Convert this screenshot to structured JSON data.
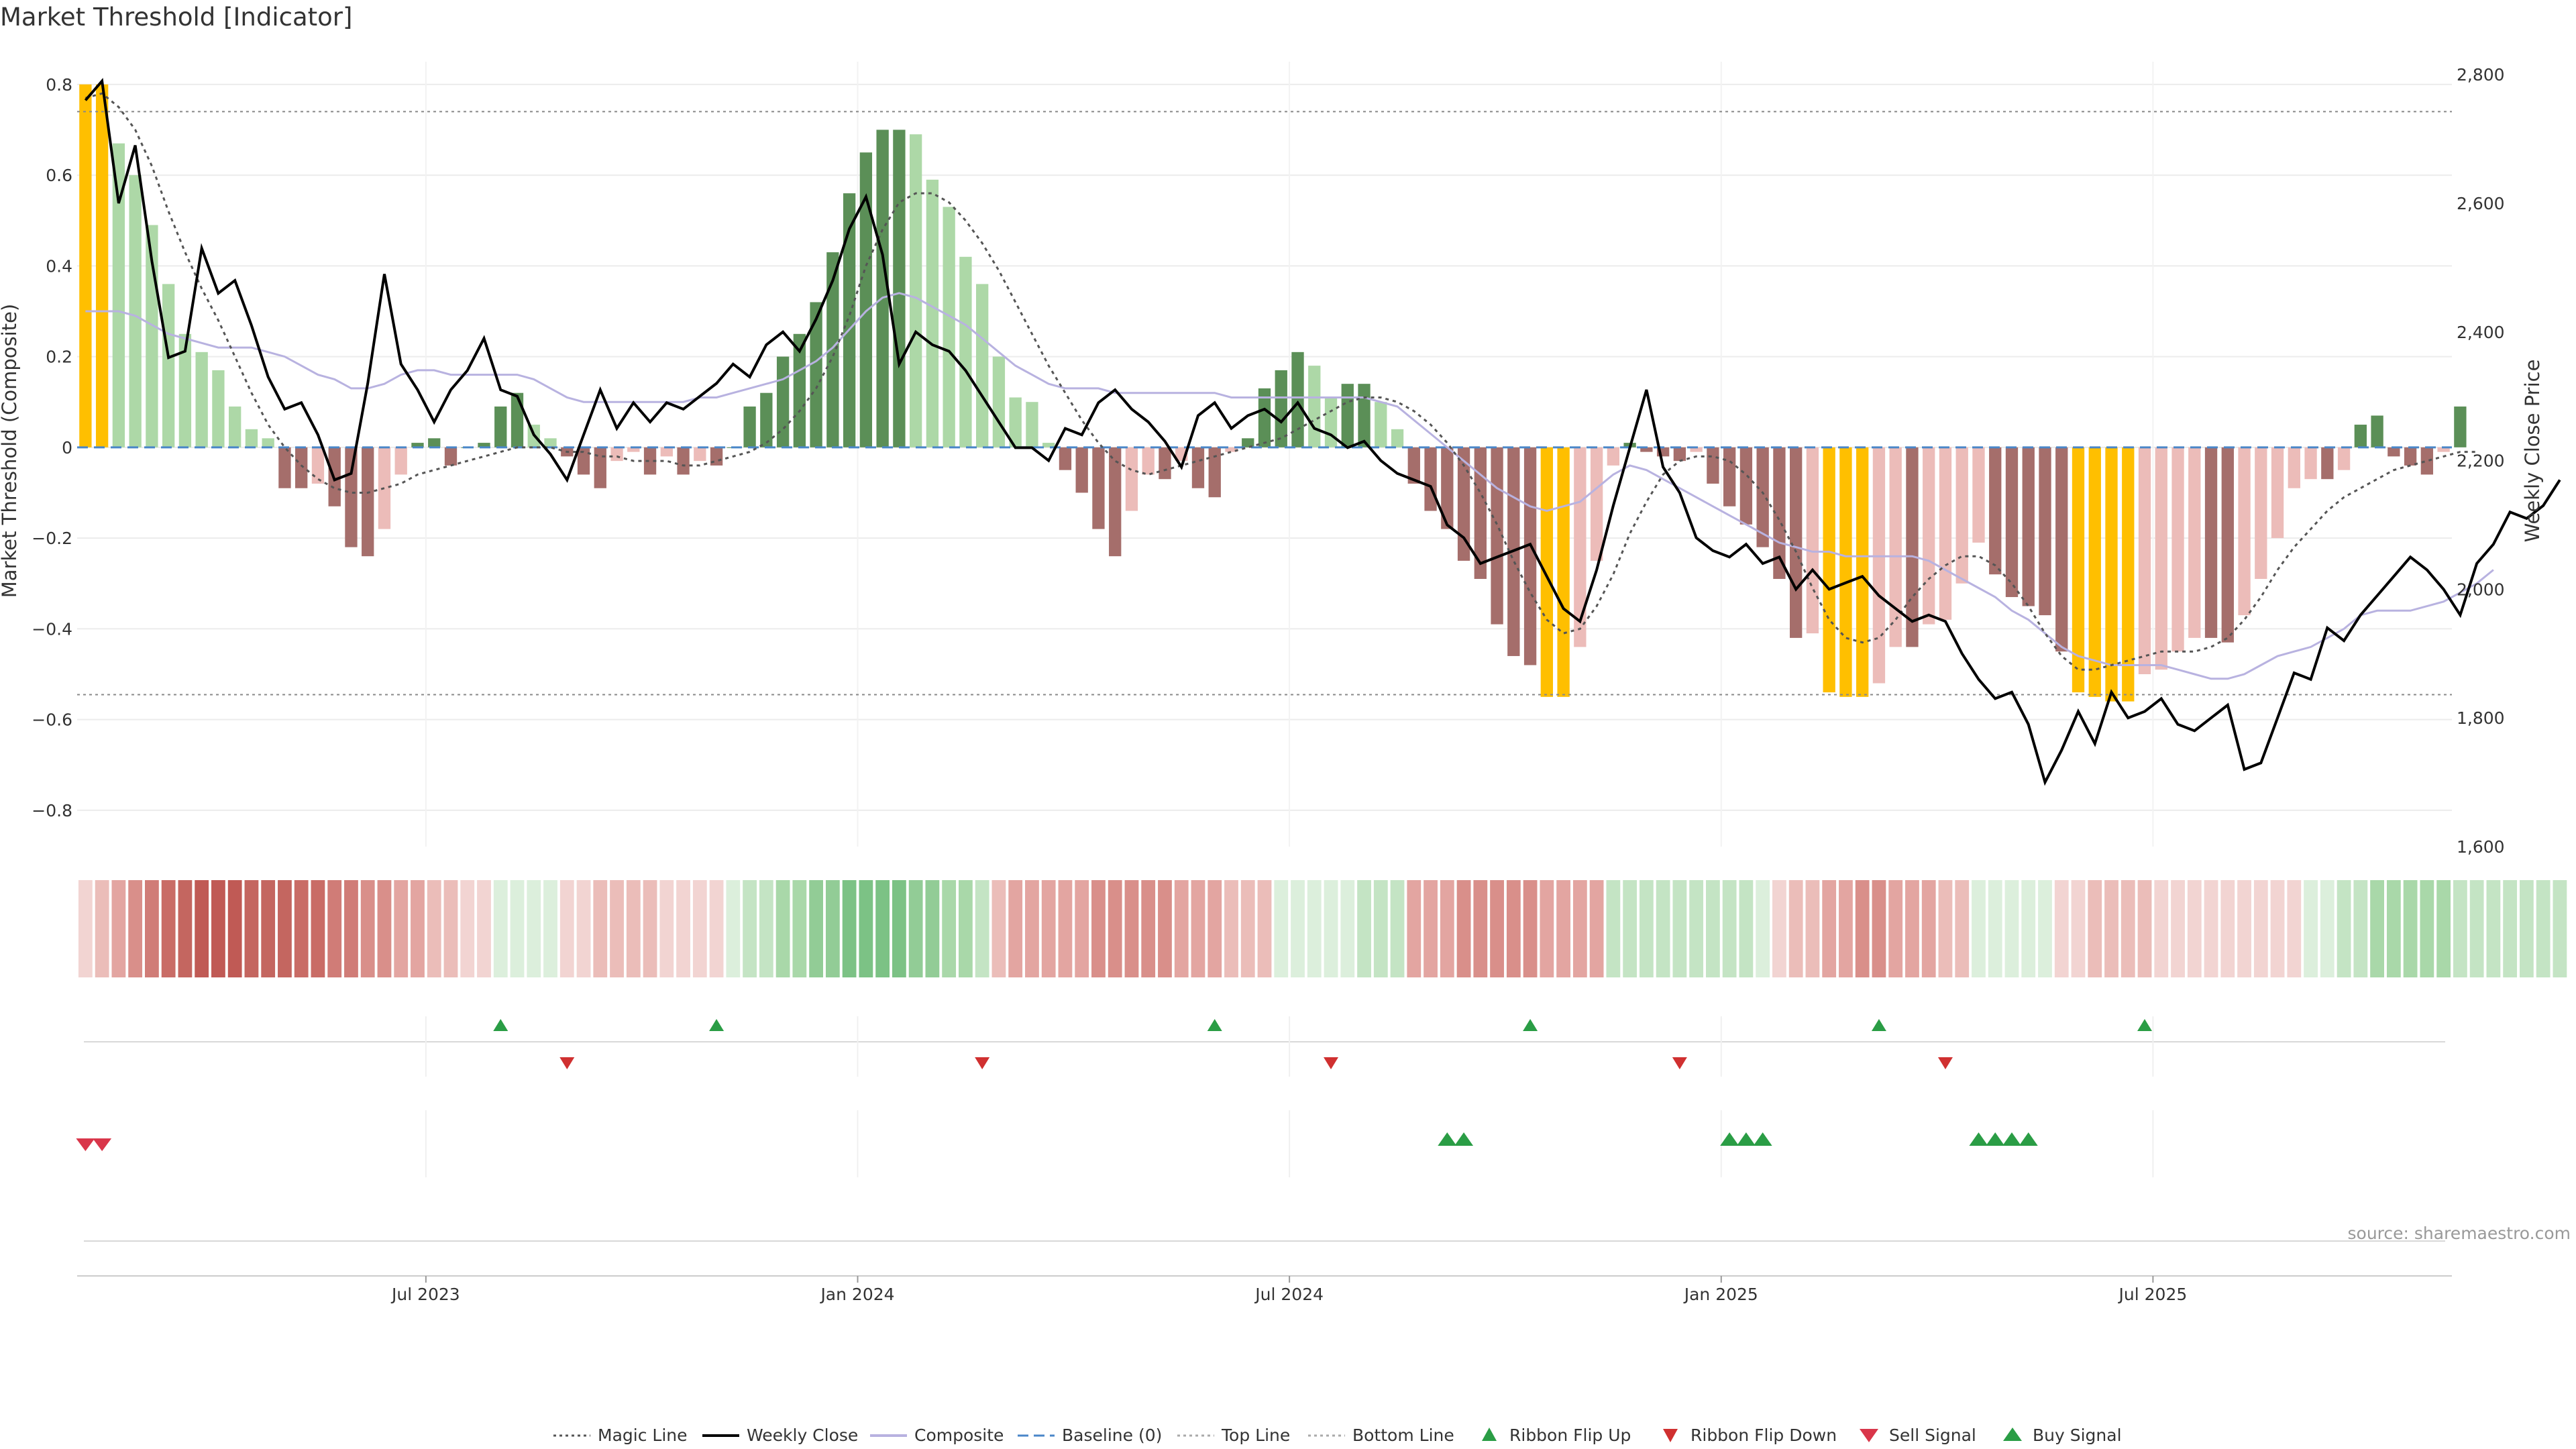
{
  "chart_data": {
    "type": "bar",
    "title": "Market Threshold [Indicator]",
    "ylabel_left": "Market Threshold (Composite)",
    "ylabel_right": "Weekly Close Price",
    "ylim_left": [
      -0.88,
      0.85
    ],
    "ylim_right": [
      1600,
      2820
    ],
    "yticks_left": [
      -0.8,
      -0.6,
      -0.4,
      -0.2,
      0,
      0.2,
      0.4,
      0.6,
      0.8
    ],
    "ytick_labels_left": [
      "−0.8",
      "−0.6",
      "−0.4",
      "−0.2",
      "0",
      "0.2",
      "0.4",
      "0.6",
      "0.8"
    ],
    "yticks_right": [
      1600,
      1800,
      2000,
      2200,
      2400,
      2600,
      2800
    ],
    "ytick_labels_right": [
      "1,600",
      "1,800",
      "2,000",
      "2,200",
      "2,400",
      "2,600",
      "2,800"
    ],
    "x_ticks": [
      {
        "week": 21,
        "label": "Jul 2023"
      },
      {
        "week": 47,
        "label": "Jan 2024"
      },
      {
        "week": 73,
        "label": "Jul 2024"
      },
      {
        "week": 99,
        "label": "Jan 2025"
      },
      {
        "week": 125,
        "label": "Jul 2025"
      }
    ],
    "weeks": 143,
    "top_line": 0.74,
    "bottom_line": -0.545,
    "baseline": 0,
    "composite_bars": [
      0.8,
      0.8,
      0.67,
      0.6,
      0.49,
      0.36,
      0.25,
      0.21,
      0.17,
      0.09,
      0.04,
      0.02,
      -0.09,
      -0.09,
      -0.08,
      -0.13,
      -0.22,
      -0.24,
      -0.18,
      -0.06,
      0.01,
      0.02,
      -0.04,
      0,
      0.01,
      0.09,
      0.12,
      0.05,
      0.02,
      -0.02,
      -0.06,
      -0.09,
      -0.03,
      -0.01,
      -0.06,
      -0.02,
      -0.06,
      -0.03,
      -0.04,
      0,
      0.09,
      0.12,
      0.2,
      0.25,
      0.32,
      0.43,
      0.56,
      0.65,
      0.7,
      0.7,
      0.69,
      0.59,
      0.53,
      0.42,
      0.36,
      0.2,
      0.11,
      0.1,
      0.01,
      -0.05,
      -0.1,
      -0.18,
      -0.24,
      -0.14,
      -0.06,
      -0.07,
      -0.03,
      -0.09,
      -0.11,
      -0.01,
      0.02,
      0.13,
      0.17,
      0.21,
      0.18,
      0.11,
      0.14,
      0.14,
      0.1,
      0.04,
      -0.08,
      -0.14,
      -0.18,
      -0.25,
      -0.29,
      -0.39,
      -0.46,
      -0.48,
      -0.55,
      -0.55,
      -0.44,
      -0.25,
      -0.04,
      0.01,
      -0.01,
      -0.02,
      -0.03,
      -0.01,
      -0.08,
      -0.13,
      -0.17,
      -0.22,
      -0.29,
      -0.42,
      -0.41,
      -0.54,
      -0.55,
      -0.55,
      -0.52,
      -0.44,
      -0.44,
      -0.39,
      -0.38,
      -0.3,
      -0.21,
      -0.28,
      -0.33,
      -0.35,
      -0.37,
      -0.45,
      -0.54,
      -0.55,
      -0.56,
      -0.56,
      -0.5,
      -0.49,
      -0.45,
      -0.42,
      -0.42,
      -0.43,
      -0.37,
      -0.29,
      -0.2,
      -0.09,
      -0.07,
      -0.07,
      -0.05,
      0.05,
      0.07,
      -0.02,
      -0.04,
      -0.06,
      -0.01,
      0.09
    ],
    "weekly_close": [
      2760,
      2790,
      2600,
      2690,
      2510,
      2360,
      2370,
      2530,
      2460,
      2480,
      2410,
      2330,
      2280,
      2290,
      2240,
      2170,
      2180,
      2320,
      2490,
      2350,
      2310,
      2260,
      2310,
      2340,
      2390,
      2310,
      2300,
      2240,
      2210,
      2170,
      2240,
      2310,
      2250,
      2290,
      2260,
      2290,
      2280,
      2300,
      2320,
      2350,
      2330,
      2380,
      2400,
      2370,
      2420,
      2480,
      2560,
      2610,
      2520,
      2350,
      2400,
      2380,
      2370,
      2340,
      2300,
      2260,
      2220,
      2220,
      2200,
      2250,
      2240,
      2290,
      2310,
      2280,
      2260,
      2230,
      2190,
      2270,
      2290,
      2250,
      2270,
      2280,
      2260,
      2290,
      2250,
      2240,
      2220,
      2230,
      2200,
      2180,
      2170,
      2160,
      2100,
      2080,
      2040,
      2050,
      2060,
      2070,
      2020,
      1970,
      1950,
      2030,
      2130,
      2220,
      2310,
      2190,
      2150,
      2080,
      2060,
      2050,
      2070,
      2040,
      2050,
      2000,
      2030,
      2000,
      2010,
      2020,
      1990,
      1970,
      1950,
      1960,
      1950,
      1900,
      1860,
      1830,
      1840,
      1790,
      1700,
      1750,
      1810,
      1760,
      1840,
      1800,
      1810,
      1830,
      1790,
      1780,
      1800,
      1820,
      1720,
      1730,
      1800,
      1870,
      1860,
      1940,
      1920,
      1960,
      1990,
      2020,
      2050,
      2030,
      2000,
      1960,
      2040,
      2070,
      2120,
      2110,
      2130,
      2170
    ],
    "magic_line": [
      0.77,
      0.78,
      0.75,
      0.7,
      0.62,
      0.52,
      0.43,
      0.35,
      0.28,
      0.2,
      0.12,
      0.05,
      0,
      -0.04,
      -0.07,
      -0.09,
      -0.1,
      -0.1,
      -0.09,
      -0.08,
      -0.06,
      -0.05,
      -0.04,
      -0.03,
      -0.02,
      -0.01,
      0,
      0,
      0,
      -0.01,
      -0.01,
      -0.02,
      -0.02,
      -0.03,
      -0.03,
      -0.03,
      -0.04,
      -0.04,
      -0.03,
      -0.02,
      -0.01,
      0.01,
      0.04,
      0.08,
      0.13,
      0.2,
      0.29,
      0.4,
      0.48,
      0.54,
      0.56,
      0.56,
      0.54,
      0.5,
      0.45,
      0.39,
      0.32,
      0.25,
      0.18,
      0.12,
      0.06,
      0.01,
      -0.03,
      -0.05,
      -0.06,
      -0.05,
      -0.04,
      -0.03,
      -0.02,
      -0.01,
      0,
      0.01,
      0.02,
      0.04,
      0.06,
      0.08,
      0.1,
      0.11,
      0.11,
      0.1,
      0.08,
      0.05,
      0.01,
      -0.04,
      -0.1,
      -0.17,
      -0.25,
      -0.32,
      -0.38,
      -0.41,
      -0.4,
      -0.35,
      -0.28,
      -0.19,
      -0.12,
      -0.06,
      -0.03,
      -0.02,
      -0.02,
      -0.03,
      -0.06,
      -0.1,
      -0.16,
      -0.23,
      -0.31,
      -0.38,
      -0.42,
      -0.43,
      -0.42,
      -0.38,
      -0.33,
      -0.29,
      -0.26,
      -0.24,
      -0.24,
      -0.26,
      -0.3,
      -0.35,
      -0.41,
      -0.46,
      -0.49,
      -0.49,
      -0.48,
      -0.47,
      -0.46,
      -0.45,
      -0.45,
      -0.45,
      -0.44,
      -0.42,
      -0.38,
      -0.33,
      -0.27,
      -0.22,
      -0.18,
      -0.14,
      -0.11,
      -0.09,
      -0.07,
      -0.05,
      -0.04,
      -0.03,
      -0.02,
      -0.01,
      -0.01
    ],
    "composite_line": [
      0.3,
      0.3,
      0.3,
      0.29,
      0.27,
      0.25,
      0.24,
      0.23,
      0.22,
      0.22,
      0.22,
      0.21,
      0.2,
      0.18,
      0.16,
      0.15,
      0.13,
      0.13,
      0.14,
      0.16,
      0.17,
      0.17,
      0.16,
      0.16,
      0.16,
      0.16,
      0.16,
      0.15,
      0.13,
      0.11,
      0.1,
      0.1,
      0.1,
      0.1,
      0.1,
      0.1,
      0.1,
      0.11,
      0.11,
      0.12,
      0.13,
      0.14,
      0.15,
      0.17,
      0.19,
      0.22,
      0.26,
      0.3,
      0.33,
      0.34,
      0.33,
      0.31,
      0.29,
      0.27,
      0.24,
      0.21,
      0.18,
      0.16,
      0.14,
      0.13,
      0.13,
      0.13,
      0.12,
      0.12,
      0.12,
      0.12,
      0.12,
      0.12,
      0.12,
      0.11,
      0.11,
      0.11,
      0.11,
      0.11,
      0.11,
      0.11,
      0.11,
      0.11,
      0.1,
      0.09,
      0.06,
      0.03,
      0,
      -0.03,
      -0.06,
      -0.09,
      -0.11,
      -0.13,
      -0.14,
      -0.13,
      -0.12,
      -0.09,
      -0.06,
      -0.04,
      -0.05,
      -0.07,
      -0.09,
      -0.11,
      -0.13,
      -0.15,
      -0.17,
      -0.19,
      -0.21,
      -0.22,
      -0.23,
      -0.23,
      -0.24,
      -0.24,
      -0.24,
      -0.24,
      -0.24,
      -0.25,
      -0.27,
      -0.29,
      -0.31,
      -0.33,
      -0.36,
      -0.38,
      -0.41,
      -0.44,
      -0.46,
      -0.47,
      -0.48,
      -0.48,
      -0.48,
      -0.48,
      -0.49,
      -0.5,
      -0.51,
      -0.51,
      -0.5,
      -0.48,
      -0.46,
      -0.45,
      -0.44,
      -0.42,
      -0.4,
      -0.37,
      -0.36,
      -0.36,
      -0.36,
      -0.35,
      -0.34,
      -0.32,
      -0.3,
      -0.27
    ],
    "ribbon": [
      -1,
      -2,
      -3,
      -4,
      -5,
      -6,
      -7,
      -8,
      -8,
      -8,
      -7,
      -7,
      -7,
      -6,
      -6,
      -5,
      -5,
      -4,
      -4,
      -3,
      -3,
      -2,
      -2,
      -1,
      -1,
      1,
      1,
      1,
      1,
      -1,
      -1,
      -2,
      -2,
      -2,
      -2,
      -1,
      -1,
      -1,
      -1,
      1,
      2,
      2,
      3,
      3,
      4,
      4,
      5,
      5,
      5,
      5,
      4,
      4,
      3,
      3,
      2,
      -2,
      -3,
      -3,
      -3,
      -3,
      -3,
      -4,
      -4,
      -4,
      -4,
      -4,
      -3,
      -3,
      -3,
      -2,
      -2,
      -2,
      1,
      1,
      1,
      1,
      1,
      2,
      2,
      2,
      -3,
      -3,
      -3,
      -4,
      -4,
      -4,
      -4,
      -4,
      -3,
      -3,
      -3,
      -3,
      2,
      2,
      2,
      2,
      2,
      2,
      2,
      2,
      2,
      1,
      -1,
      -2,
      -2,
      -3,
      -3,
      -4,
      -4,
      -3,
      -3,
      -3,
      -2,
      -2,
      1,
      1,
      1,
      1,
      1,
      -1,
      -1,
      -2,
      -2,
      -2,
      -2,
      -1,
      -1,
      -1,
      -1,
      -1,
      -1,
      -1,
      -1,
      -1,
      1,
      1,
      2,
      2,
      3,
      3,
      3,
      3,
      3,
      2,
      2,
      2,
      2,
      2,
      2,
      2
    ],
    "ribbon_flip_up": [
      25,
      38,
      68,
      87,
      108,
      124
    ],
    "ribbon_flip_down": [
      29,
      54,
      75,
      96,
      112
    ],
    "sell_signal": [
      0,
      1
    ],
    "buy_signal": [
      82,
      83,
      99,
      100,
      101,
      114,
      115,
      116,
      117
    ],
    "legend": [
      "Magic Line",
      "Weekly Close",
      "Composite",
      "Baseline (0)",
      "Top Line",
      "Bottom Line",
      "Ribbon Flip Up",
      "Ribbon Flip Down",
      "Sell Signal",
      "Buy Signal"
    ],
    "source": "source: sharemaestro.com",
    "colors": {
      "bar_pos_light": "#add8a7",
      "bar_pos_dark": "#5b8f57",
      "bar_neg_light": "#ecbcb9",
      "bar_neg_dark": "#a56e6b",
      "bar_extreme": "#ffbf00",
      "close": "#000000",
      "magic": "#555555",
      "composite": "#b8b2e0",
      "baseline": "#4a86c8",
      "ref_line": "#aaaaaa",
      "flip_up": "#2a9d45",
      "flip_down": "#d03030",
      "sell": "#d9364a",
      "buy": "#2a9d45"
    }
  }
}
